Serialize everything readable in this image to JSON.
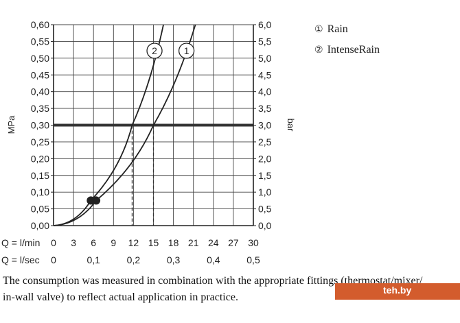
{
  "chart_data": {
    "type": "line",
    "y_left_label": "MPa",
    "y_right_label": "bar",
    "y_left_ticks": [
      "0,00",
      "0,05",
      "0,10",
      "0,15",
      "0,20",
      "0,25",
      "0,30",
      "0,35",
      "0,40",
      "0,45",
      "0,50",
      "0,55",
      "0,60"
    ],
    "y_right_ticks": [
      "0,0",
      "0,5",
      "1,0",
      "1,5",
      "2,0",
      "2,5",
      "3,0",
      "3,5",
      "4,0",
      "4,5",
      "5,0",
      "5,5",
      "6,0"
    ],
    "ylim": [
      0,
      0.6
    ],
    "xlim": [
      0,
      30
    ],
    "x_lmin_label": "Q = l/min",
    "x_lmin_ticks": [
      "0",
      "3",
      "6",
      "9",
      "12",
      "15",
      "18",
      "21",
      "24",
      "27",
      "30"
    ],
    "x_lsec_label": "Q = l/sec",
    "x_lsec_ticks": [
      "0",
      "0,1",
      "0,2",
      "0,3",
      "0,4",
      "0,5"
    ],
    "grid": true,
    "reference_pressure": 0.3,
    "series": [
      {
        "marker": "1",
        "name": "Rain",
        "x": [
          0,
          6.4,
          15,
          21.3
        ],
        "y": [
          0,
          0.075,
          0.3,
          0.6
        ],
        "flow_at_reference": 15
      },
      {
        "marker": "2",
        "name": "IntenseRain",
        "x": [
          0,
          5.6,
          11.8,
          16.5
        ],
        "y": [
          0,
          0.075,
          0.3,
          0.6
        ],
        "flow_at_reference": 11.8
      }
    ]
  },
  "legend": [
    {
      "marker": "①",
      "label": "Rain"
    },
    {
      "marker": "②",
      "label": "IntenseRain"
    }
  ],
  "caption": {
    "line1": "The consumption was measured in combination with the appropriate fittings (thermostat/mixer/",
    "line2": "in-wall valve) to reflect actual application in practice."
  },
  "watermark": "teh.by"
}
